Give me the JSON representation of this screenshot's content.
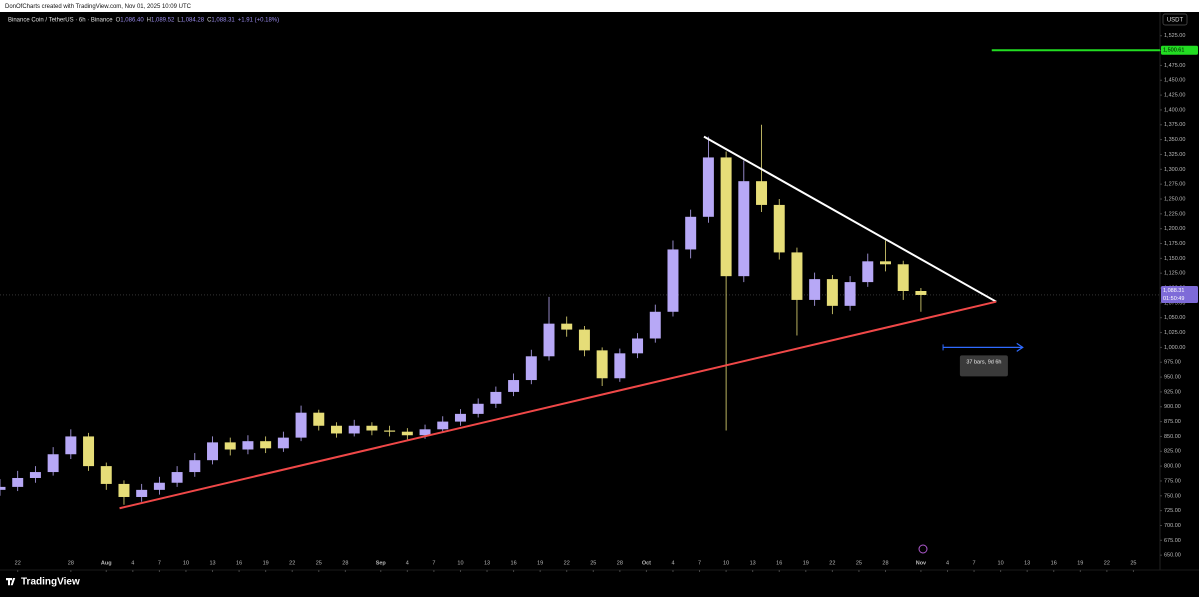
{
  "header": "DonOfCharts created with TradingView.com, Nov 01, 2025 10:09 UTC",
  "legend": {
    "symbol": "Binance Coin / TetherUS · 6h · Binance",
    "items": [
      {
        "key": "O",
        "value": "1,086.40"
      },
      {
        "key": "H",
        "value": "1,089.52"
      },
      {
        "key": "L",
        "value": "1,084.28"
      },
      {
        "key": "C",
        "value": "1,088.31"
      }
    ],
    "change": "+1.91 (+0.18%)"
  },
  "currency": "USDT",
  "brand": "TradingView",
  "chart_data": {
    "type": "candlestick",
    "up_color": "#b7a8f6",
    "down_color": "#e6dd78",
    "x": [
      -2,
      0,
      2,
      4,
      6,
      8,
      10,
      12,
      14,
      16,
      18,
      20,
      22,
      24,
      26,
      28,
      30,
      32,
      34,
      36,
      38,
      40,
      42,
      44,
      46,
      48,
      50,
      52,
      54,
      56,
      58,
      60,
      62,
      64,
      66,
      68,
      70,
      72,
      74,
      76,
      78,
      80,
      82,
      84,
      86,
      88,
      90,
      92,
      94,
      96,
      98,
      100,
      102
    ],
    "open": [
      760,
      765,
      780,
      790,
      820,
      850,
      800,
      770,
      748,
      760,
      772,
      790,
      810,
      840,
      828,
      842,
      830,
      848,
      890,
      868,
      855,
      868,
      860,
      858,
      852,
      862,
      875,
      888,
      905,
      925,
      945,
      985,
      1040,
      1030,
      995,
      948,
      990,
      1015,
      1060,
      1165,
      1220,
      1320,
      1120,
      1280,
      1240,
      1160,
      1080,
      1115,
      1070,
      1110,
      1145,
      1140,
      1095
    ],
    "high": [
      778,
      792,
      800,
      832,
      862,
      856,
      806,
      776,
      770,
      782,
      800,
      822,
      850,
      848,
      852,
      850,
      858,
      902,
      895,
      874,
      878,
      874,
      868,
      864,
      870,
      884,
      896,
      914,
      934,
      956,
      996,
      1085,
      1052,
      1036,
      1000,
      998,
      1024,
      1072,
      1180,
      1232,
      1355,
      1330,
      1315,
      1375,
      1250,
      1168,
      1126,
      1122,
      1120,
      1158,
      1180,
      1146,
      1100
    ],
    "low": [
      750,
      758,
      772,
      784,
      812,
      792,
      760,
      735,
      740,
      752,
      765,
      782,
      803,
      818,
      820,
      822,
      824,
      842,
      860,
      848,
      850,
      852,
      850,
      845,
      846,
      856,
      868,
      882,
      898,
      918,
      938,
      978,
      1018,
      985,
      935,
      942,
      982,
      1008,
      1052,
      1150,
      1210,
      860,
      1110,
      1228,
      1148,
      1020,
      1070,
      1056,
      1062,
      1102,
      1128,
      1080,
      1060
    ],
    "close": [
      765,
      780,
      790,
      820,
      850,
      800,
      770,
      748,
      760,
      772,
      790,
      810,
      840,
      828,
      842,
      830,
      848,
      890,
      868,
      855,
      868,
      860,
      858,
      852,
      862,
      875,
      888,
      905,
      925,
      945,
      985,
      1040,
      1030,
      995,
      948,
      990,
      1015,
      1060,
      1165,
      1220,
      1320,
      1120,
      1280,
      1240,
      1160,
      1080,
      1115,
      1070,
      1110,
      1145,
      1140,
      1095,
      1088.31
    ],
    "last_price": {
      "value": 1088.31,
      "label": "1,088.31",
      "countdown": "01:50:49",
      "color": "#7e6bd8"
    },
    "lines": [
      {
        "color": "#ffffff",
        "x": [
          77.5,
          110.5
        ],
        "y": [
          1355,
          1077
        ]
      },
      {
        "color": "#f04848",
        "x": [
          11.5,
          110.5
        ],
        "y": [
          729,
          1077
        ]
      }
    ],
    "level": {
      "value": 1500.61,
      "label": "1,500.61",
      "x": [
        110
      ],
      "color": "#22dd22"
    },
    "range_tool": {
      "x": [
        104.5,
        113.5
      ],
      "y": 1000,
      "label": "37 bars, 9d 6h",
      "color": "#2f6bff"
    },
    "xlim": [
      -2,
      129
    ],
    "ylim": [
      625,
      1565
    ],
    "xticks": [
      {
        "value": 0,
        "label": "22"
      },
      {
        "value": 6,
        "label": "28"
      },
      {
        "value": 10,
        "label": "Aug"
      },
      {
        "value": 13,
        "label": "4"
      },
      {
        "value": 16,
        "label": "7"
      },
      {
        "value": 19,
        "label": "10"
      },
      {
        "value": 22,
        "label": "13"
      },
      {
        "value": 25,
        "label": "16"
      },
      {
        "value": 28,
        "label": "19"
      },
      {
        "value": 31,
        "label": "22"
      },
      {
        "value": 34,
        "label": "25"
      },
      {
        "value": 37,
        "label": "28"
      },
      {
        "value": 41,
        "label": "Sep"
      },
      {
        "value": 44,
        "label": "4"
      },
      {
        "value": 47,
        "label": "7"
      },
      {
        "value": 50,
        "label": "10"
      },
      {
        "value": 53,
        "label": "13"
      },
      {
        "value": 56,
        "label": "16"
      },
      {
        "value": 59,
        "label": "19"
      },
      {
        "value": 62,
        "label": "22"
      },
      {
        "value": 65,
        "label": "25"
      },
      {
        "value": 68,
        "label": "28"
      },
      {
        "value": 71,
        "label": "Oct"
      },
      {
        "value": 74,
        "label": "4"
      },
      {
        "value": 77,
        "label": "7"
      },
      {
        "value": 80,
        "label": "10"
      },
      {
        "value": 83,
        "label": "13"
      },
      {
        "value": 86,
        "label": "16"
      },
      {
        "value": 89,
        "label": "19"
      },
      {
        "value": 92,
        "label": "22"
      },
      {
        "value": 95,
        "label": "25"
      },
      {
        "value": 98,
        "label": "28"
      },
      {
        "value": 102,
        "label": "Nov"
      },
      {
        "value": 105,
        "label": "4"
      },
      {
        "value": 108,
        "label": "7"
      },
      {
        "value": 111,
        "label": "10"
      },
      {
        "value": 114,
        "label": "13"
      },
      {
        "value": 117,
        "label": "16"
      },
      {
        "value": 120,
        "label": "19"
      },
      {
        "value": 123,
        "label": "22"
      },
      {
        "value": 126,
        "label": "25"
      }
    ],
    "yticks": [
      {
        "value": 650,
        "label": "650.00"
      },
      {
        "value": 675,
        "label": "675.00"
      },
      {
        "value": 700,
        "label": "700.00"
      },
      {
        "value": 725,
        "label": "725.00"
      },
      {
        "value": 750,
        "label": "750.00"
      },
      {
        "value": 775,
        "label": "775.00"
      },
      {
        "value": 800,
        "label": "800.00"
      },
      {
        "value": 825,
        "label": "825.00"
      },
      {
        "value": 850,
        "label": "850.00"
      },
      {
        "value": 875,
        "label": "875.00"
      },
      {
        "value": 900,
        "label": "900.00"
      },
      {
        "value": 925,
        "label": "925.00"
      },
      {
        "value": 950,
        "label": "950.00"
      },
      {
        "value": 975,
        "label": "975.00"
      },
      {
        "value": 1000,
        "label": "1,000.00"
      },
      {
        "value": 1025,
        "label": "1,025.00"
      },
      {
        "value": 1050,
        "label": "1,050.00"
      },
      {
        "value": 1075,
        "label": "1,075.00"
      },
      {
        "value": 1100,
        "label": "1,100.00"
      },
      {
        "value": 1125,
        "label": "1,125.00"
      },
      {
        "value": 1150,
        "label": "1,150.00"
      },
      {
        "value": 1175,
        "label": "1,175.00"
      },
      {
        "value": 1200,
        "label": "1,200.00"
      },
      {
        "value": 1225,
        "label": "1,225.00"
      },
      {
        "value": 1250,
        "label": "1,250.00"
      },
      {
        "value": 1275,
        "label": "1,275.00"
      },
      {
        "value": 1300,
        "label": "1,300.00"
      },
      {
        "value": 1325,
        "label": "1,325.00"
      },
      {
        "value": 1350,
        "label": "1,350.00"
      },
      {
        "value": 1375,
        "label": "1,375.00"
      },
      {
        "value": 1400,
        "label": "1,400.00"
      },
      {
        "value": 1425,
        "label": "1,425.00"
      },
      {
        "value": 1450,
        "label": "1,450.00"
      },
      {
        "value": 1475,
        "label": "1,475.00"
      },
      {
        "value": 1500,
        "label": "1,500.00"
      },
      {
        "value": 1525,
        "label": "1,525.00"
      }
    ]
  }
}
